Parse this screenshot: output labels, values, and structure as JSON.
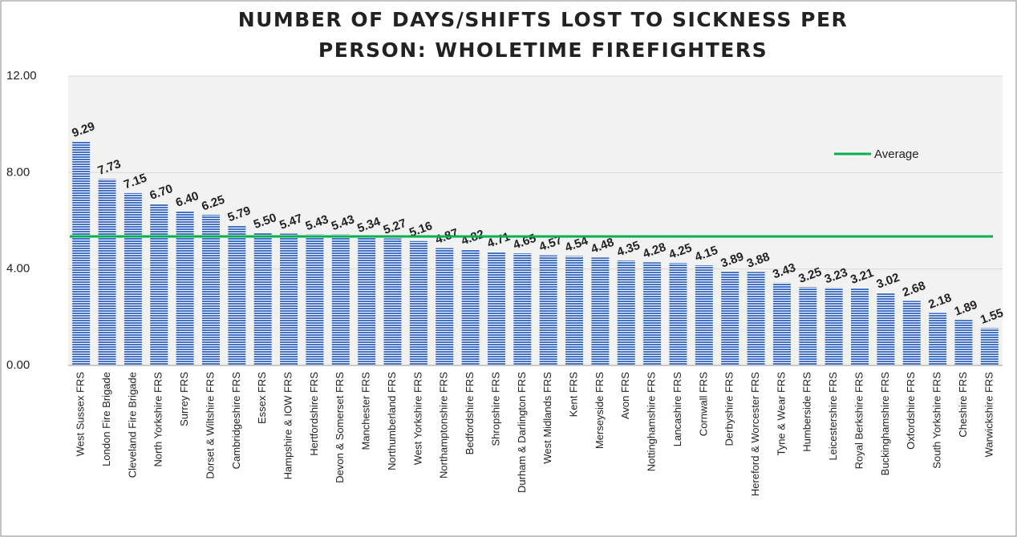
{
  "chart_data": {
    "type": "bar",
    "title": [
      "NUMBER OF DAYS/SHIFTS LOST TO SICKNESS PER",
      "PERSON: WHOLETIME FIREFIGHTERS"
    ],
    "categories": [
      "West Sussex FRS",
      "London Fire Brigade",
      "Cleveland Fire Brigade",
      "North Yorkshire FRS",
      "Surrey FRS",
      "Dorset & Wiltshire FRS",
      "Cambridgeshire FRS",
      "Essex FRS",
      "Hampshire & IOW FRS",
      "Hertfordshire FRS",
      "Devon & Somerset FRS",
      "Manchester FRS",
      "Northumberland FRS",
      "West Yorkshire FRS",
      "Northamptonshire FRS",
      "Bedfordshire FRS",
      "Shropshire FRS",
      "Durham & Darlington FRS",
      "West Midlands FRS",
      "Kent FRS",
      "Merseyside FRS",
      "Avon FRS",
      "Nottinghamshire FRS",
      "Lancashire FRS",
      "Cornwall FRS",
      "Derbyshire FRS",
      "Hereford & Worcester FRS",
      "Tyne & Wear FRS",
      "Humberside FRS",
      "Leicestershire FRS",
      "Royal Berkshire FRS",
      "Buckinghamshire FRS",
      "Oxfordshire FRS",
      "South Yorkshire FRS",
      "Cheshire FRS",
      "Warwickshire FRS"
    ],
    "values": [
      9.29,
      7.73,
      7.15,
      6.7,
      6.4,
      6.25,
      5.79,
      5.5,
      5.47,
      5.43,
      5.43,
      5.34,
      5.27,
      5.16,
      4.87,
      4.82,
      4.71,
      4.65,
      4.57,
      4.54,
      4.48,
      4.35,
      4.28,
      4.25,
      4.15,
      3.89,
      3.88,
      3.43,
      3.25,
      3.23,
      3.21,
      3.02,
      2.68,
      2.18,
      1.89,
      1.55
    ],
    "value_labels": [
      "9.29",
      "7.73",
      "7.15",
      "6.70",
      "6.40",
      "6.25",
      "5.79",
      "5.50",
      "5.47",
      "5.43",
      "5.43",
      "5.34",
      "5.27",
      "5.16",
      "4.87",
      "4.82",
      "4.71",
      "4.65",
      "4.57",
      "4.54",
      "4.48",
      "4.35",
      "4.28",
      "4.25",
      "4.15",
      "3.89",
      "3.88",
      "3.43",
      "3.25",
      "3.23",
      "3.21",
      "3.02",
      "2.68",
      "2.18",
      "1.89",
      "1.55"
    ],
    "color": "#4472c4",
    "average": {
      "name": "Average",
      "value": 5.35,
      "color": "#00b050"
    },
    "ylim": [
      0,
      12
    ],
    "yticks": [
      {
        "value": 0,
        "label": "0.00"
      },
      {
        "value": 4,
        "label": "4.00"
      },
      {
        "value": 8,
        "label": "8.00"
      },
      {
        "value": 12,
        "label": "12.00"
      }
    ],
    "grid": true
  }
}
